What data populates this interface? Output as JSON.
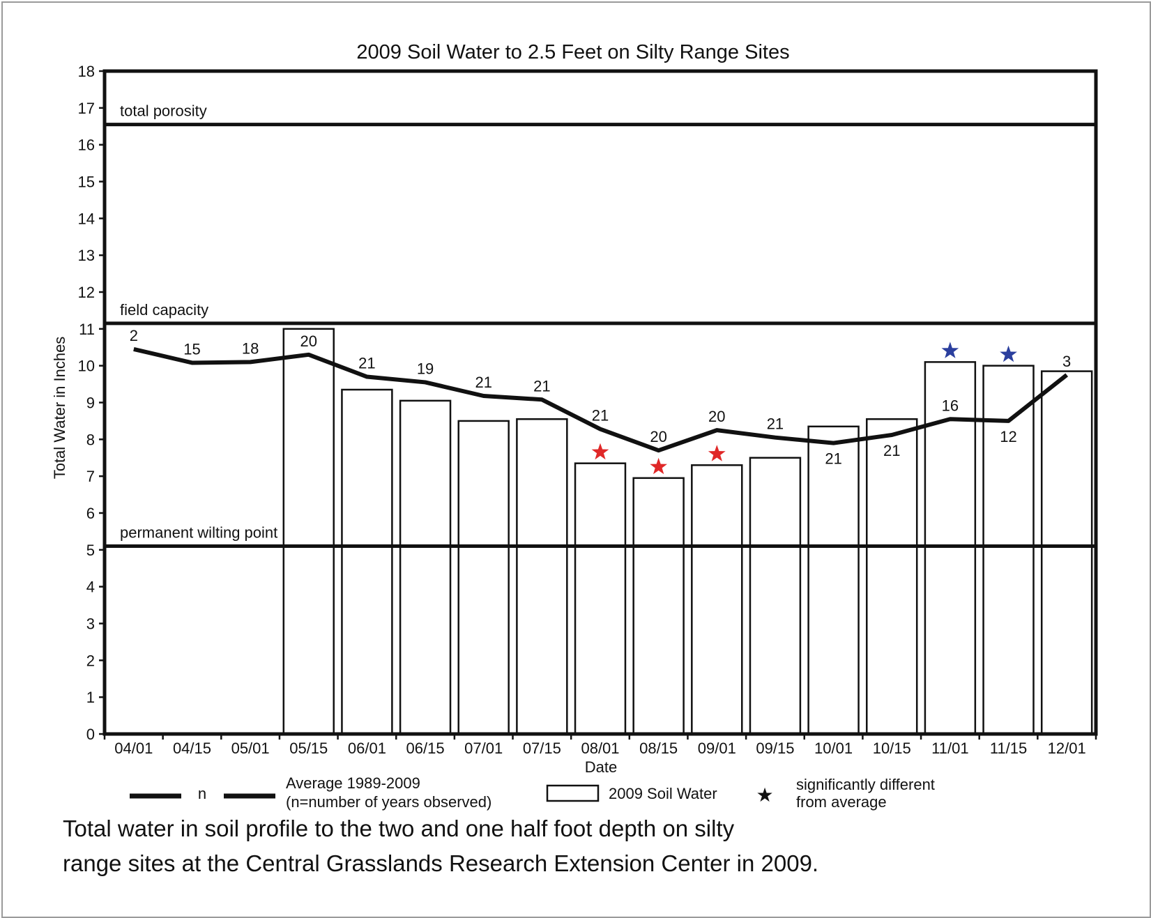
{
  "chart_data": {
    "type": "bar",
    "title": "2009 Soil Water to 2.5 Feet on Silty Range Sites",
    "xlabel": "Date",
    "ylabel": "Total Water in Inches",
    "ylim": [
      0,
      18
    ],
    "yticks": [
      0,
      1,
      2,
      3,
      4,
      5,
      6,
      7,
      8,
      9,
      10,
      11,
      12,
      13,
      14,
      15,
      16,
      17,
      18
    ],
    "categories": [
      "04/01",
      "04/15",
      "05/01",
      "05/15",
      "06/01",
      "06/15",
      "07/01",
      "07/15",
      "08/01",
      "08/15",
      "09/01",
      "09/15",
      "10/01",
      "10/15",
      "11/01",
      "11/15",
      "12/01"
    ],
    "series": [
      {
        "name": "2009 Soil Water",
        "kind": "bar",
        "values": [
          null,
          null,
          null,
          11.0,
          9.35,
          9.05,
          8.5,
          8.55,
          7.35,
          6.95,
          7.3,
          7.5,
          8.35,
          8.55,
          10.1,
          10.0,
          9.85
        ]
      },
      {
        "name": "Average 1989-2009",
        "kind": "line",
        "values": [
          10.45,
          10.08,
          10.1,
          10.3,
          9.7,
          9.55,
          9.18,
          9.08,
          8.28,
          7.7,
          8.25,
          8.05,
          7.9,
          8.12,
          8.55,
          8.5,
          9.75
        ],
        "n_labels": [
          "2",
          "15",
          "18",
          "20",
          "21",
          "19",
          "21",
          "21",
          "21",
          "20",
          "20",
          "21",
          "21",
          "21",
          "16",
          "12",
          "3"
        ],
        "n_label_position": [
          "above",
          "above",
          "above",
          "above",
          "above",
          "above",
          "above",
          "above",
          "above",
          "above",
          "above",
          "above",
          "below",
          "below",
          "above",
          "below",
          "above"
        ]
      }
    ],
    "significance_stars": [
      {
        "category": "08/01",
        "color": "#e02828"
      },
      {
        "category": "08/15",
        "color": "#e02828"
      },
      {
        "category": "09/01",
        "color": "#e02828"
      },
      {
        "category": "11/01",
        "color": "#2b3f9e"
      },
      {
        "category": "11/15",
        "color": "#2b3f9e"
      }
    ],
    "reference_lines": [
      {
        "label": "total porosity",
        "value": 16.55
      },
      {
        "label": "field capacity",
        "value": 11.15
      },
      {
        "label": "permanent wilting point",
        "value": 5.1
      }
    ],
    "legend": {
      "placement": "bottom",
      "line_n": "n",
      "average_line1": "Average 1989-2009",
      "average_line2": "(n=number of years observed)",
      "bar": "2009 Soil Water",
      "star_glyph": "★",
      "star_line1": "significantly different",
      "star_line2": "from average"
    },
    "grid": false
  },
  "caption": {
    "line1": "Total water in soil profile to the two and one half foot depth on silty",
    "line2": "range sites at the Central Grasslands Research Extension Center in 2009."
  }
}
